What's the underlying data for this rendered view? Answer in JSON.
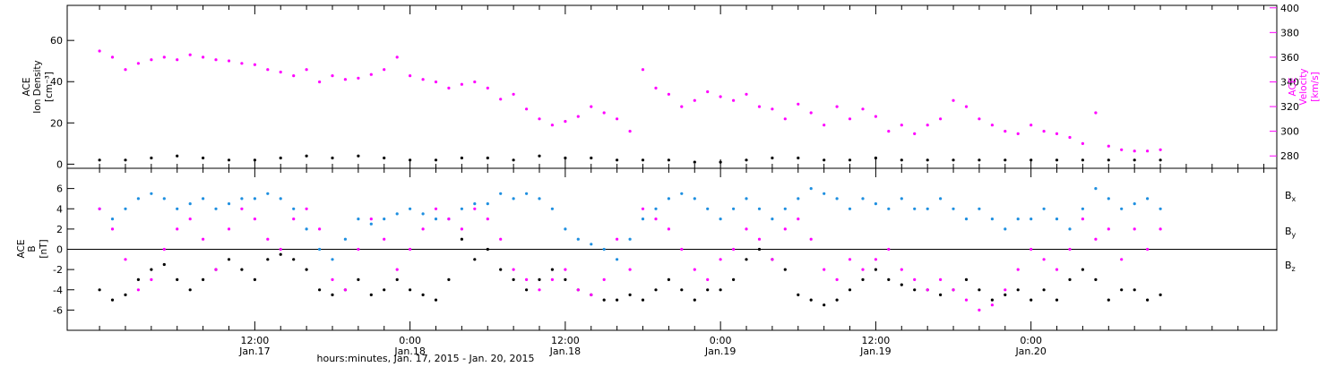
{
  "chart_data": [
    {
      "type": "scatter",
      "title": "",
      "yaxis_left": {
        "label_lines": [
          "ACE",
          "Ion Density",
          "[cm⁻³]"
        ],
        "range": [
          -2,
          77
        ],
        "ticks": [
          0,
          20,
          40,
          60
        ],
        "tick_labels": [
          "0",
          "20",
          "40",
          "60"
        ]
      },
      "yaxis_right": {
        "label_lines": [
          "ACE",
          "Velocity",
          "[km/s]"
        ],
        "range": [
          270,
          402
        ],
        "ticks": [
          280,
          300,
          320,
          340,
          360,
          380,
          400
        ],
        "tick_labels": [
          "280",
          "300",
          "320",
          "340",
          "360",
          "380",
          "400"
        ]
      },
      "colors": {
        "density": "#000000",
        "velocity": "#ff00ff"
      },
      "series": [
        {
          "axis": "left",
          "color": "#000000",
          "x_hours": [
            0,
            2,
            4,
            6,
            8,
            10,
            12,
            14,
            16,
            18,
            20,
            22,
            24,
            26,
            28,
            30,
            32,
            34,
            36,
            38,
            40,
            42,
            44,
            46,
            48,
            50,
            52,
            54,
            56,
            58,
            60,
            62,
            64,
            66,
            68,
            70,
            72,
            74,
            76,
            78,
            80,
            82
          ],
          "values": [
            2,
            2,
            3,
            4,
            3,
            2,
            2,
            3,
            4,
            3,
            4,
            3,
            2,
            2,
            3,
            3,
            2,
            4,
            3,
            3,
            2,
            2,
            2,
            1,
            1,
            2,
            3,
            3,
            2,
            2,
            3,
            2,
            2,
            2,
            2,
            2,
            2,
            2,
            2,
            2,
            2,
            2
          ]
        },
        {
          "axis": "right",
          "color": "#ff00ff",
          "x_hours": [
            0,
            1,
            2,
            3,
            4,
            5,
            6,
            7,
            8,
            9,
            10,
            11,
            12,
            13,
            14,
            15,
            16,
            17,
            18,
            19,
            20,
            21,
            22,
            23,
            24,
            25,
            26,
            27,
            28,
            29,
            30,
            31,
            32,
            33,
            34,
            35,
            36,
            37,
            38,
            39,
            40,
            41,
            42,
            43,
            44,
            45,
            46,
            47,
            48,
            49,
            50,
            51,
            52,
            53,
            54,
            55,
            56,
            57,
            58,
            59,
            60,
            61,
            62,
            63,
            64,
            65,
            66,
            67,
            68,
            69,
            70,
            71,
            72,
            73,
            74,
            75,
            76,
            77,
            78,
            79,
            80,
            81,
            82
          ],
          "values": [
            365,
            360,
            350,
            355,
            358,
            360,
            358,
            362,
            360,
            358,
            357,
            355,
            354,
            350,
            348,
            345,
            350,
            340,
            345,
            342,
            343,
            346,
            350,
            360,
            345,
            342,
            340,
            335,
            338,
            340,
            335,
            326,
            330,
            318,
            310,
            305,
            308,
            312,
            320,
            315,
            310,
            300,
            350,
            335,
            330,
            320,
            325,
            332,
            328,
            325,
            330,
            320,
            318,
            310,
            322,
            315,
            305,
            320,
            310,
            318,
            312,
            300,
            305,
            298,
            305,
            310,
            325,
            320,
            310,
            305,
            300,
            298,
            305,
            300,
            298,
            295,
            290,
            315,
            288,
            285,
            284,
            284,
            285
          ]
        }
      ]
    },
    {
      "type": "scatter",
      "title": "",
      "yaxis_left": {
        "label_lines": [
          "ACE",
          "B",
          "[nT]"
        ],
        "range": [
          -8,
          8
        ],
        "ticks": [
          -6,
          -4,
          -2,
          0,
          2,
          4,
          6
        ],
        "tick_labels": [
          "-6",
          "-4",
          "-2",
          "0",
          "2",
          "4",
          "6"
        ],
        "zero_line": true
      },
      "legend": {
        "placement": "right",
        "entries": [
          {
            "base": "B",
            "sub": "x",
            "color": "#000000"
          },
          {
            "base": "B",
            "sub": "y",
            "color": "#1e8fe0"
          },
          {
            "base": "B",
            "sub": "z",
            "color": "#ff00ff"
          }
        ]
      },
      "series": [
        {
          "name": "Bx",
          "color": "#000000",
          "x_hours": [
            0,
            1,
            2,
            3,
            4,
            5,
            6,
            7,
            8,
            9,
            10,
            11,
            12,
            13,
            14,
            15,
            16,
            17,
            18,
            19,
            20,
            21,
            22,
            23,
            24,
            25,
            26,
            27,
            28,
            29,
            30,
            31,
            32,
            33,
            34,
            35,
            36,
            37,
            38,
            39,
            40,
            41,
            42,
            43,
            44,
            45,
            46,
            47,
            48,
            49,
            50,
            51,
            52,
            53,
            54,
            55,
            56,
            57,
            58,
            59,
            60,
            61,
            62,
            63,
            64,
            65,
            66,
            67,
            68,
            69,
            70,
            71,
            72,
            73,
            74,
            75,
            76,
            77,
            78,
            79,
            80,
            81,
            82
          ],
          "values": [
            -4,
            -5,
            -4.5,
            -3,
            -2,
            -1.5,
            -3,
            -4,
            -3,
            -2,
            -1,
            -2,
            -3,
            -1,
            -0.5,
            -1,
            -2,
            -4,
            -4.5,
            -4,
            -3,
            -4.5,
            -4,
            -3,
            -4,
            -4.5,
            -5,
            -3,
            1,
            -1,
            0,
            -2,
            -3,
            -4,
            -3,
            -2,
            -3,
            -4,
            -4.5,
            -5,
            -5,
            -4.5,
            -5,
            -4,
            -3,
            -4,
            -5,
            -4,
            -4,
            -3,
            -1,
            0,
            -1,
            -2,
            -4.5,
            -5,
            -5.5,
            -5,
            -4,
            -3,
            -2,
            -3,
            -3.5,
            -4,
            -4,
            -4.5,
            -4,
            -3,
            -4,
            -5,
            -4.5,
            -4,
            -5,
            -4,
            -5,
            -3,
            -2,
            -3,
            -5,
            -4,
            -4,
            -5,
            -4.5
          ]
        },
        {
          "name": "By",
          "color": "#1e8fe0",
          "x_hours": [
            0,
            1,
            2,
            3,
            4,
            5,
            6,
            7,
            8,
            9,
            10,
            11,
            12,
            13,
            14,
            15,
            16,
            17,
            18,
            19,
            20,
            21,
            22,
            23,
            24,
            25,
            26,
            27,
            28,
            29,
            30,
            31,
            32,
            33,
            34,
            35,
            36,
            37,
            38,
            39,
            40,
            41,
            42,
            43,
            44,
            45,
            46,
            47,
            48,
            49,
            50,
            51,
            52,
            53,
            54,
            55,
            56,
            57,
            58,
            59,
            60,
            61,
            62,
            63,
            64,
            65,
            66,
            67,
            68,
            69,
            70,
            71,
            72,
            73,
            74,
            75,
            76,
            77,
            78,
            79,
            80,
            81,
            82
          ],
          "values": [
            4,
            3,
            4,
            5,
            5.5,
            5,
            4,
            4.5,
            5,
            4,
            4.5,
            5,
            5,
            5.5,
            5,
            4,
            2,
            0,
            -1,
            1,
            3,
            2.5,
            3,
            3.5,
            4,
            3.5,
            3,
            3,
            4,
            4.5,
            4.5,
            5.5,
            5,
            5.5,
            5,
            4,
            2,
            1,
            0.5,
            0,
            -1,
            1,
            3,
            4,
            5,
            5.5,
            5,
            4,
            3,
            4,
            5,
            4,
            3,
            4,
            5,
            6,
            5.5,
            5,
            4,
            5,
            4.5,
            4,
            5,
            4,
            4,
            5,
            4,
            3,
            4,
            3,
            2,
            3,
            3,
            4,
            3,
            2,
            4,
            6,
            5,
            4,
            4.5,
            5,
            4
          ]
        },
        {
          "name": "Bz",
          "color": "#ff00ff",
          "x_hours": [
            0,
            1,
            2,
            3,
            4,
            5,
            6,
            7,
            8,
            9,
            10,
            11,
            12,
            13,
            14,
            15,
            16,
            17,
            18,
            19,
            20,
            21,
            22,
            23,
            24,
            25,
            26,
            27,
            28,
            29,
            30,
            31,
            32,
            33,
            34,
            35,
            36,
            37,
            38,
            39,
            40,
            41,
            42,
            43,
            44,
            45,
            46,
            47,
            48,
            49,
            50,
            51,
            52,
            53,
            54,
            55,
            56,
            57,
            58,
            59,
            60,
            61,
            62,
            63,
            64,
            65,
            66,
            67,
            68,
            69,
            70,
            71,
            72,
            73,
            74,
            75,
            76,
            77,
            78,
            79,
            80,
            81,
            82
          ],
          "values": [
            4,
            2,
            -1,
            -4,
            -3,
            0,
            2,
            3,
            1,
            -2,
            2,
            4,
            3,
            1,
            0,
            3,
            4,
            2,
            -3,
            -4,
            0,
            3,
            1,
            -2,
            0,
            2,
            4,
            3,
            2,
            4,
            3,
            1,
            -2,
            -3,
            -4,
            -3,
            -2,
            -4,
            -4.5,
            -3,
            1,
            -2,
            4,
            3,
            2,
            0,
            -2,
            -3,
            -1,
            0,
            2,
            1,
            -1,
            2,
            3,
            1,
            -2,
            -3,
            -1,
            -2,
            -1,
            0,
            -2,
            -3,
            -4,
            -3,
            -4,
            -5,
            -6,
            -5.5,
            -4,
            -2,
            0,
            -1,
            -2,
            0,
            3,
            1,
            2,
            -1,
            2,
            0,
            2
          ]
        }
      ]
    }
  ],
  "x_axis": {
    "range_hours": [
      -2.5,
      91
    ],
    "ticks_hours": [
      12,
      24,
      36,
      48,
      60,
      72
    ],
    "tick_labels": [
      {
        "time": "12:00",
        "date": "Jan.17"
      },
      {
        "time": "0:00",
        "date": "Jan.18"
      },
      {
        "time": "12:00",
        "date": "Jan.18"
      },
      {
        "time": "0:00",
        "date": "Jan.19"
      },
      {
        "time": "12:00",
        "date": "Jan.19"
      },
      {
        "time": "0:00",
        "date": "Jan.20"
      }
    ],
    "label": "hours:minutes, Jan. 17, 2015 - Jan. 20, 2015"
  }
}
